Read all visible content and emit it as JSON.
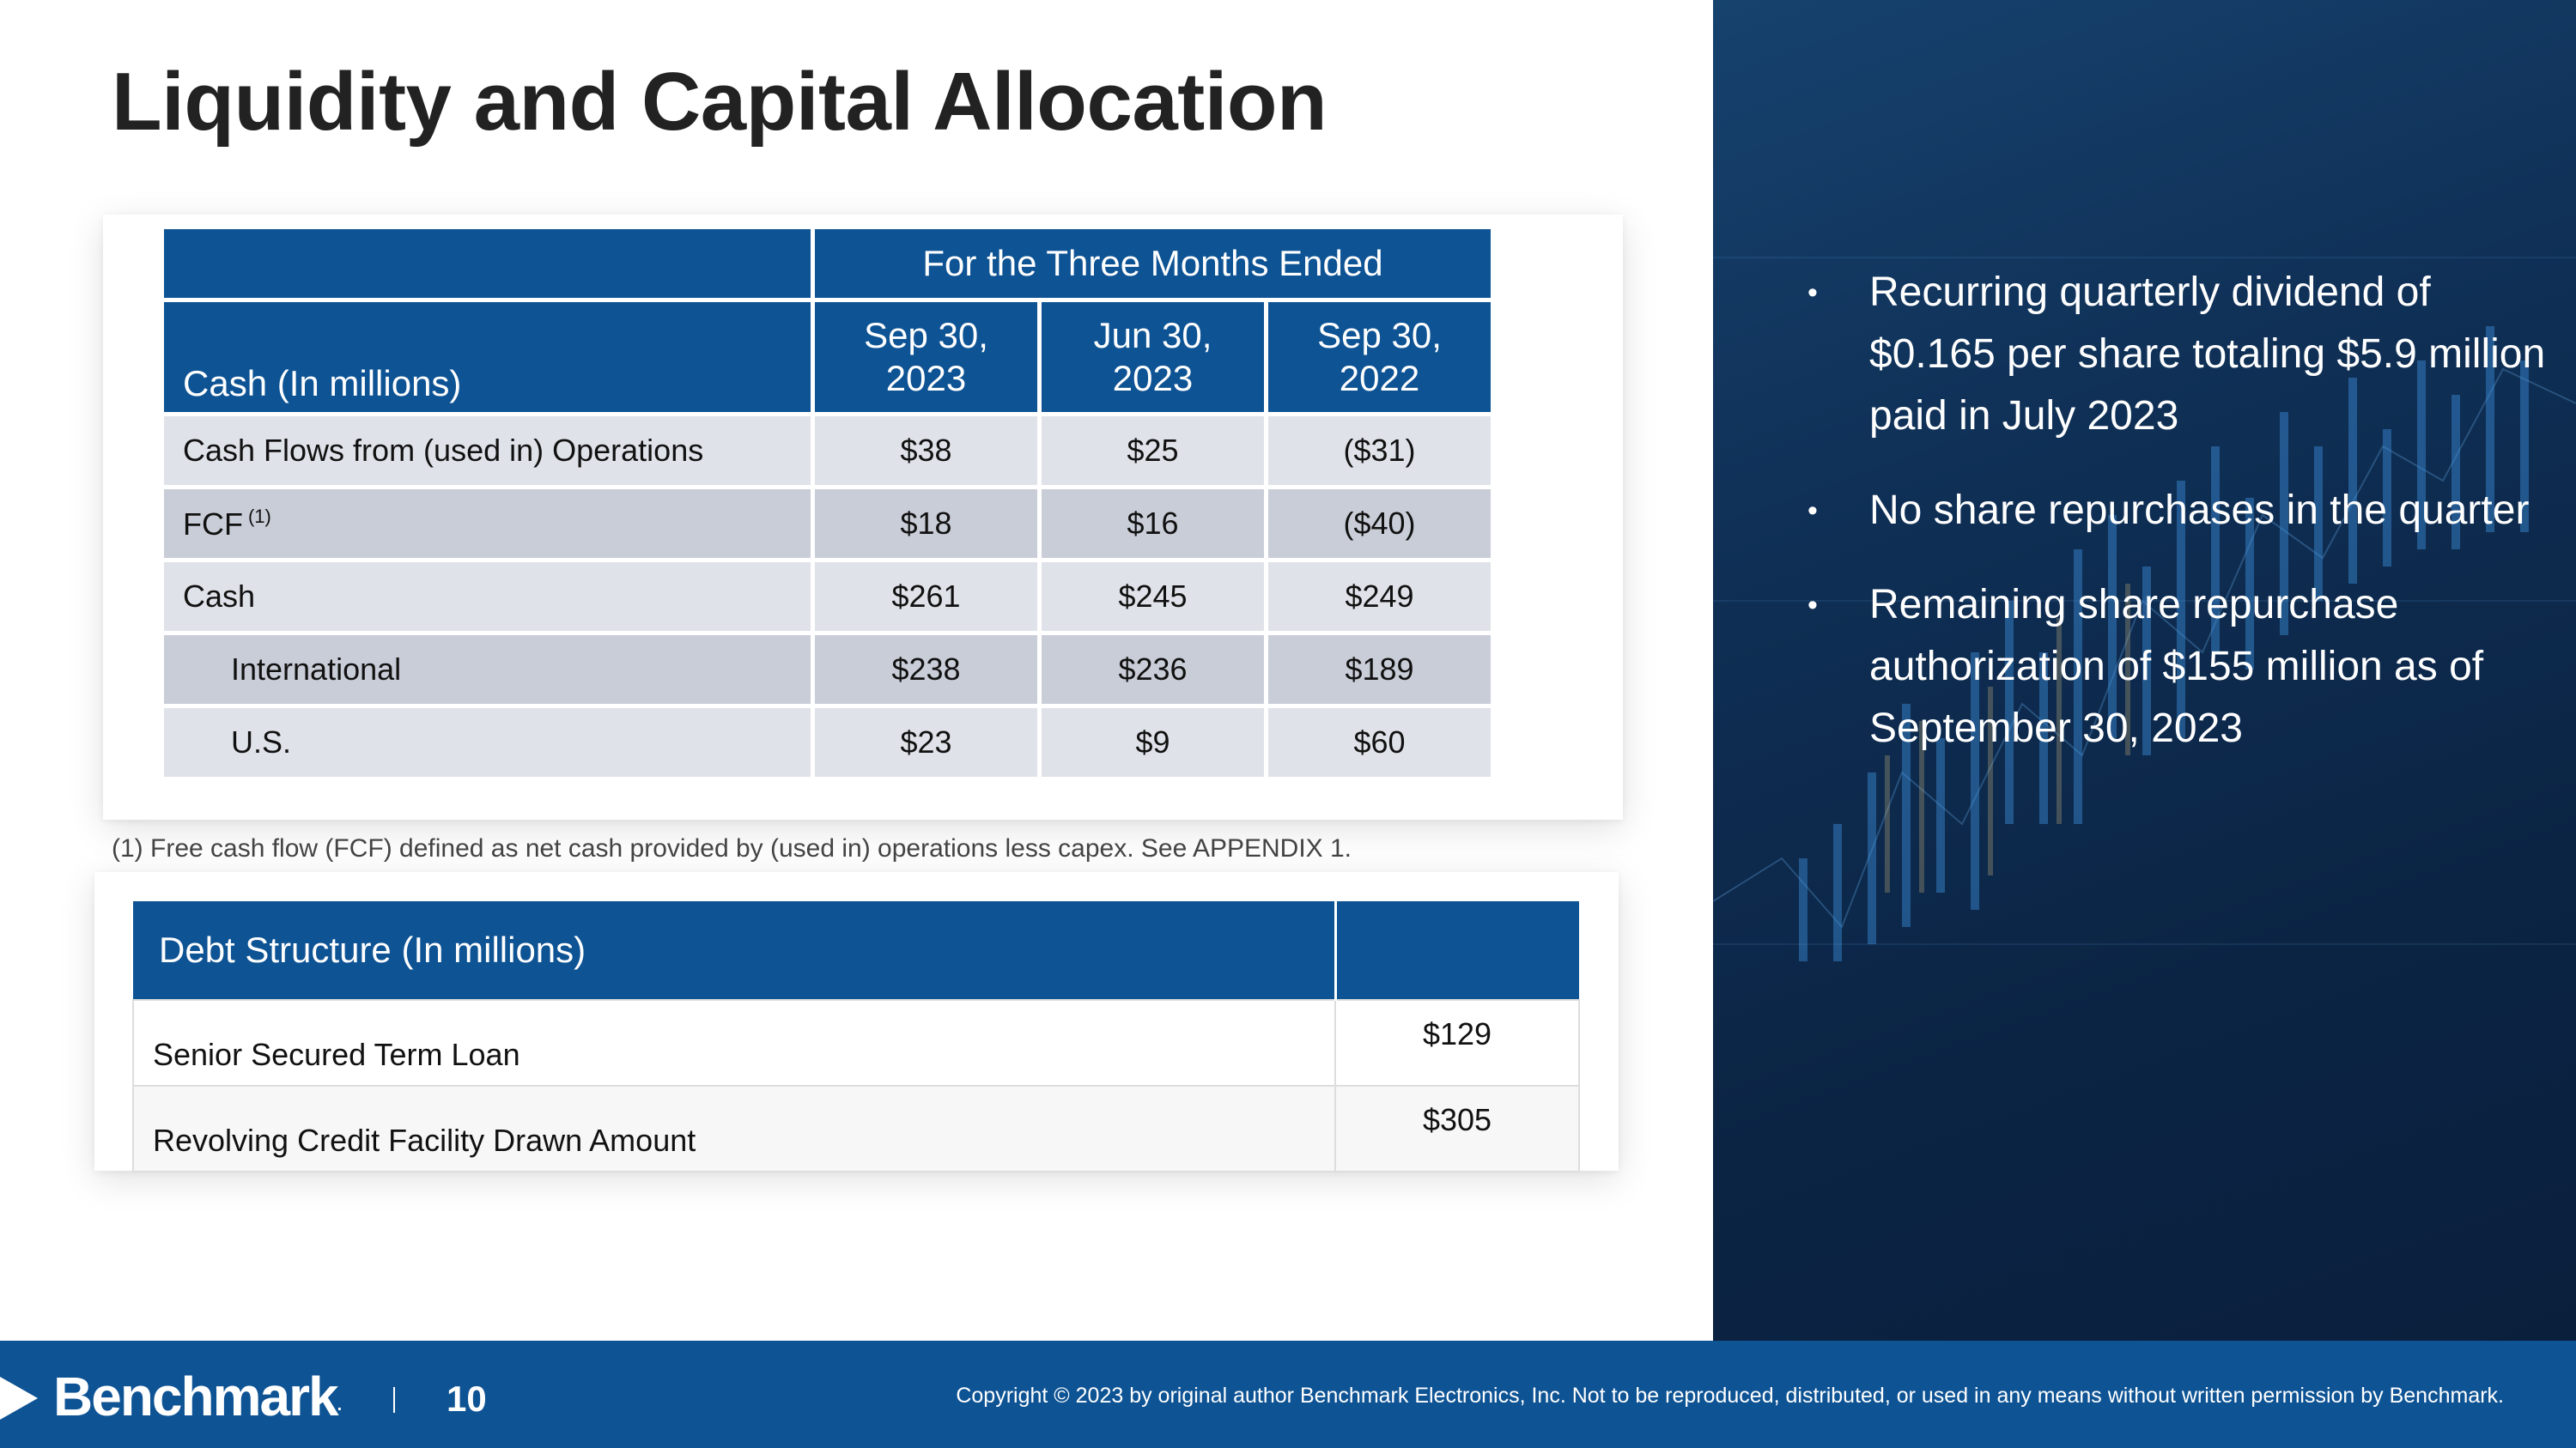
{
  "title": "Liquidity and Capital Allocation",
  "cash_table": {
    "group_header": "For the Three Months Ended",
    "row_header": "Cash (In millions)",
    "columns": [
      {
        "line1": "Sep 30,",
        "line2": "2023"
      },
      {
        "line1": "Jun 30,",
        "line2": "2023"
      },
      {
        "line1": "Sep 30,",
        "line2": "2022"
      }
    ],
    "rows": [
      {
        "label": "Cash Flows from (used in) Operations",
        "values": [
          "$38",
          "$25",
          "($31)"
        ]
      },
      {
        "label": "FCF",
        "note": "(1)",
        "values": [
          "$18",
          "$16",
          "($40)"
        ]
      },
      {
        "label": "Cash",
        "values": [
          "$261",
          "$245",
          "$249"
        ]
      },
      {
        "label": "International",
        "values": [
          "$238",
          "$236",
          "$189"
        ]
      },
      {
        "label": "U.S.",
        "values": [
          "$23",
          "$9",
          "$60"
        ]
      }
    ]
  },
  "footnote": "(1) Free cash flow (FCF) defined as net cash provided by (used in) operations less capex. See APPENDIX 1.",
  "debt_table": {
    "header": "Debt Structure (In millions)",
    "rows": [
      {
        "label": "Senior Secured Term Loan",
        "value": "$129"
      },
      {
        "label": "Revolving Credit Facility Drawn Amount",
        "value": "$305"
      }
    ]
  },
  "bullets": [
    "Recurring quarterly dividend of $0.165 per share totaling $5.9 million paid in July 2023",
    "No share repurchases in the quarter",
    "Remaining share repurchase authorization of $155 million as of September 30, 2023"
  ],
  "footer": {
    "logo": "Benchmark",
    "logo_mark": ".",
    "page_number": "10",
    "copyright": "Copyright © 2023 by original author Benchmark Electronics, Inc. Not to be reproduced, distributed, or used in any means without written permission by Benchmark."
  },
  "colors": {
    "brand_blue": "#0e5394",
    "row_light": "#dfe2e8",
    "row_dark": "#c9cdd7",
    "panel_dark": "#0b2444"
  }
}
